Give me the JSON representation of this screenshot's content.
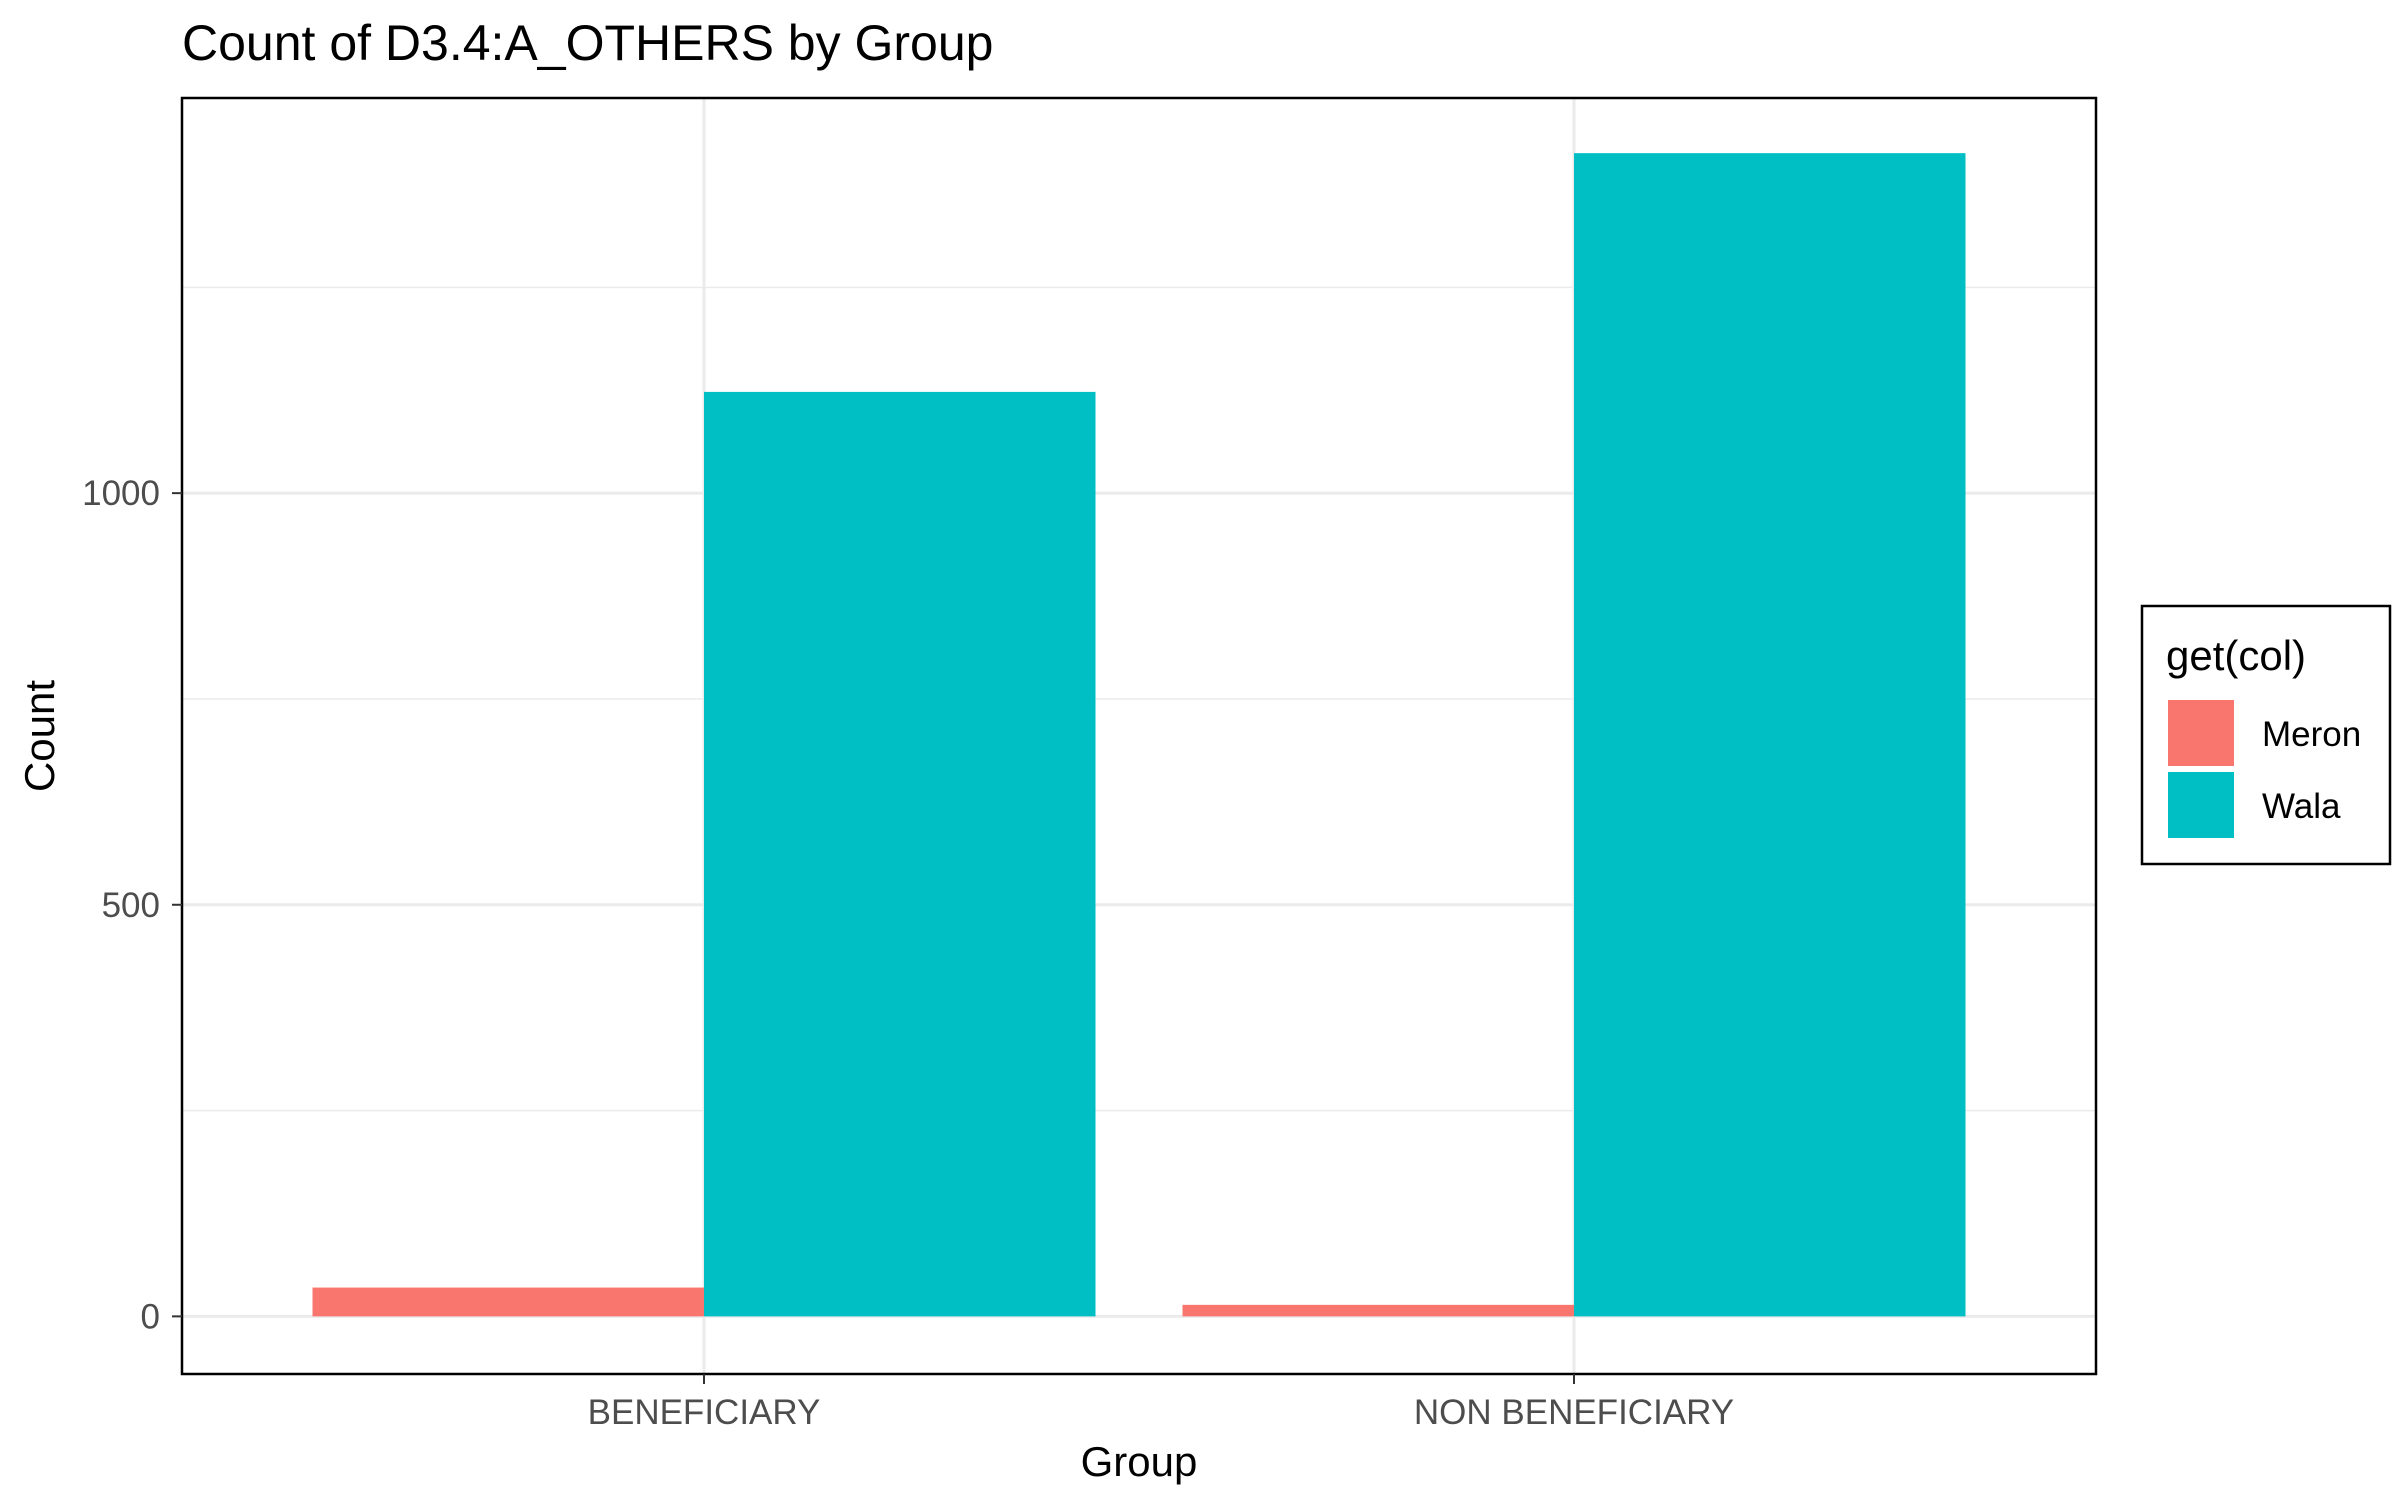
{
  "chart_data": {
    "type": "bar",
    "title": "Count of D3.4:A_OTHERS by Group",
    "xlabel": "Group",
    "ylabel": "Count",
    "categories": [
      "BENEFICIARY",
      "NON BENEFICIARY"
    ],
    "series": [
      {
        "name": "Meron",
        "color": "#F8766D",
        "values": [
          35,
          14
        ]
      },
      {
        "name": "Wala",
        "color": "#00BFC4",
        "values": [
          1123,
          1413
        ]
      }
    ],
    "ylim": [
      -70,
      1480
    ],
    "yticks": [
      0,
      500,
      1000
    ],
    "yticks_minor": [
      250,
      750,
      1250
    ],
    "grid": true,
    "legend": {
      "title": "get(col)",
      "position": "right"
    }
  }
}
